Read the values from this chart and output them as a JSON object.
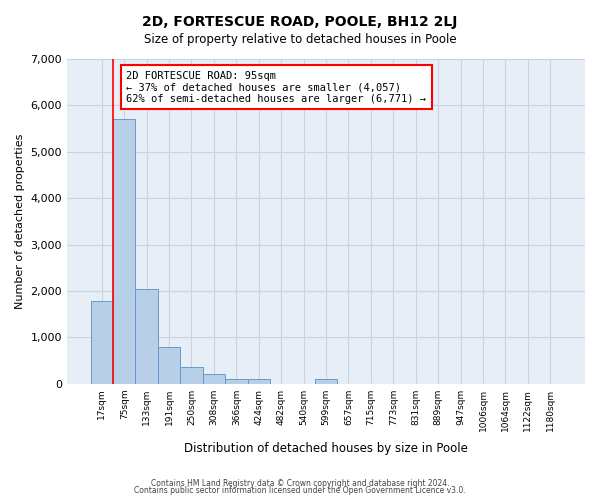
{
  "title": "2D, FORTESCUE ROAD, POOLE, BH12 2LJ",
  "subtitle": "Size of property relative to detached houses in Poole",
  "xlabel": "Distribution of detached houses by size in Poole",
  "ylabel": "Number of detached properties",
  "bar_color": "#b8cfe8",
  "bar_edgecolor": "#6699cc",
  "grid_color": "#c8d4e4",
  "background_color": "#e8eef6",
  "bin_labels": [
    "17sqm",
    "75sqm",
    "133sqm",
    "191sqm",
    "250sqm",
    "308sqm",
    "366sqm",
    "424sqm",
    "482sqm",
    "540sqm",
    "599sqm",
    "657sqm",
    "715sqm",
    "773sqm",
    "831sqm",
    "889sqm",
    "947sqm",
    "1006sqm",
    "1064sqm",
    "1122sqm",
    "1180sqm"
  ],
  "bar_heights": [
    1780,
    5700,
    2040,
    800,
    365,
    220,
    110,
    115,
    0,
    0,
    95,
    0,
    0,
    0,
    0,
    0,
    0,
    0,
    0,
    0,
    0
  ],
  "red_line_x": 0.5,
  "annotation_title": "2D FORTESCUE ROAD: 95sqm",
  "annotation_line1": "← 37% of detached houses are smaller (4,057)",
  "annotation_line2": "62% of semi-detached houses are larger (6,771) →",
  "ylim": [
    0,
    7000
  ],
  "yticks": [
    0,
    1000,
    2000,
    3000,
    4000,
    5000,
    6000,
    7000
  ],
  "footer1": "Contains HM Land Registry data © Crown copyright and database right 2024.",
  "footer2": "Contains public sector information licensed under the Open Government Licence v3.0."
}
